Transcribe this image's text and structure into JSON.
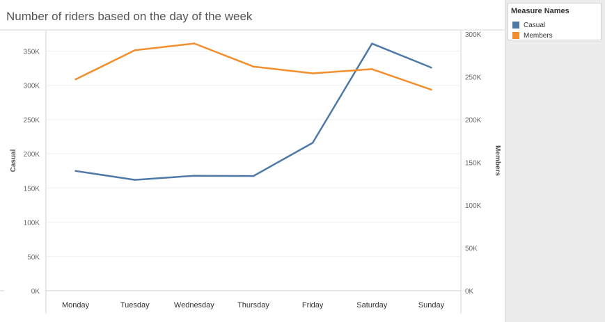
{
  "chart_data": {
    "type": "line",
    "title": "Number of riders based on the day of the week",
    "categories": [
      "Monday",
      "Tuesday",
      "Wednesday",
      "Thursday",
      "Friday",
      "Saturday",
      "Sunday"
    ],
    "series": [
      {
        "name": "Casual",
        "axis": "left",
        "color": "#4e79a7",
        "values": [
          175000,
          162000,
          168000,
          167500,
          216000,
          361000,
          326000
        ]
      },
      {
        "name": "Members",
        "axis": "right",
        "color": "#f28e2b",
        "values": [
          247000,
          281000,
          289000,
          262000,
          254000,
          259000,
          235000
        ]
      }
    ],
    "left_axis": {
      "label": "Casual",
      "ylim": [
        0,
        380000
      ],
      "ticks": [
        0,
        50000,
        100000,
        150000,
        200000,
        250000,
        300000,
        350000
      ],
      "tick_labels": [
        "0K",
        "50K",
        "100K",
        "150K",
        "200K",
        "250K",
        "300K",
        "350K"
      ]
    },
    "right_axis": {
      "label": "Members",
      "ylim": [
        0,
        304000
      ],
      "ticks": [
        0,
        50000,
        100000,
        150000,
        200000,
        250000,
        300000
      ],
      "tick_labels": [
        "0K",
        "50K",
        "100K",
        "150K",
        "200K",
        "250K",
        "300K"
      ]
    },
    "legend": {
      "title": "Measure Names",
      "placement": "top-right"
    }
  }
}
